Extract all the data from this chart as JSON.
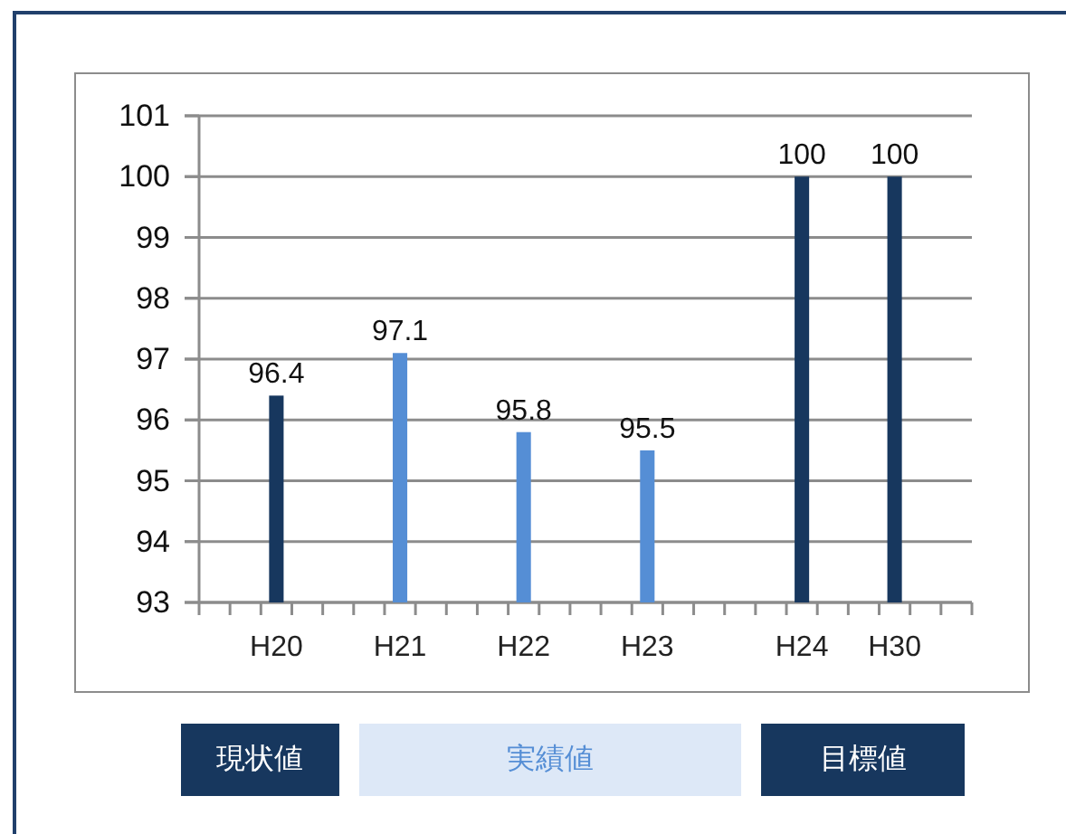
{
  "chart_data": {
    "type": "bar",
    "categories": [
      null,
      null,
      "H20",
      null,
      null,
      null,
      "H21",
      null,
      null,
      null,
      "H22",
      null,
      null,
      null,
      "H23",
      null,
      null,
      null,
      null,
      "H24",
      null,
      null,
      "H30",
      null,
      null
    ],
    "series": [
      {
        "name": "現状値",
        "color": "#17375e",
        "values": [
          null,
          null,
          96.4,
          null,
          null,
          null,
          null,
          null,
          null,
          null,
          null,
          null,
          null,
          null,
          null,
          null,
          null,
          null,
          null,
          null,
          null,
          null,
          null,
          null,
          null
        ]
      },
      {
        "name": "実績値",
        "color": "#558ed5",
        "values": [
          null,
          null,
          null,
          null,
          null,
          null,
          97.1,
          null,
          null,
          null,
          95.8,
          null,
          null,
          null,
          95.5,
          null,
          null,
          null,
          null,
          null,
          null,
          null,
          null,
          null,
          null
        ]
      },
      {
        "name": "目標値",
        "color": "#17375e",
        "values": [
          null,
          null,
          null,
          null,
          null,
          null,
          null,
          null,
          null,
          null,
          null,
          null,
          null,
          null,
          null,
          null,
          null,
          null,
          null,
          100,
          null,
          null,
          100,
          null,
          null
        ]
      }
    ],
    "ylim": [
      93,
      101
    ],
    "yticks": [
      93,
      94,
      95,
      96,
      97,
      98,
      99,
      100,
      101
    ],
    "grid": "y",
    "data_labels": true,
    "legend": "bottom"
  }
}
